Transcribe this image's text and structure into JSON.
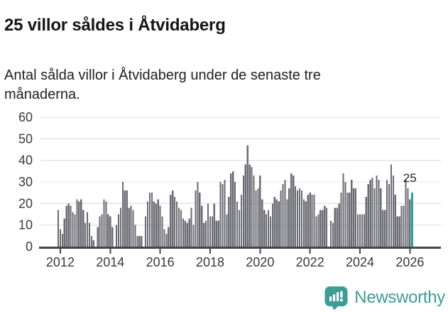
{
  "header": {
    "title": "25 villor såldes i Åtvidaberg",
    "subtitle": "Antal sålda villor i Åtvidaberg under de senaste tre månaderna."
  },
  "chart_data": {
    "type": "bar",
    "title": "25 villor såldes i Åtvidaberg",
    "subtitle": "Antal sålda villor i Åtvidaberg under de senaste tre månaderna.",
    "frequency": "monthly",
    "values": [
      17,
      8,
      6,
      13,
      19,
      20,
      19,
      16,
      15,
      22,
      21,
      22,
      17,
      11,
      16,
      11,
      5,
      3,
      0,
      9,
      14,
      15,
      22,
      21,
      15,
      14,
      9,
      0,
      10,
      15,
      18,
      30,
      26,
      26,
      18,
      19,
      17,
      10,
      5,
      5,
      5,
      0,
      14,
      21,
      25,
      25,
      21,
      20,
      22,
      19,
      14,
      8,
      6,
      9,
      24,
      26,
      23,
      21,
      18,
      17,
      13,
      12,
      11,
      13,
      18,
      10,
      26,
      30,
      25,
      19,
      11,
      12,
      20,
      14,
      14,
      20,
      12,
      12,
      30,
      29,
      31,
      15,
      23,
      34,
      35,
      30,
      21,
      17,
      24,
      33,
      38,
      47,
      38,
      37,
      33,
      26,
      27,
      33,
      22,
      17,
      15,
      17,
      14,
      20,
      23,
      22,
      21,
      26,
      29,
      31,
      22,
      27,
      34,
      33,
      28,
      26,
      27,
      26,
      22,
      21,
      24,
      25,
      24,
      24,
      14,
      15,
      17,
      17,
      19,
      18,
      0,
      12,
      11,
      18,
      18,
      20,
      25,
      34,
      30,
      25,
      25,
      31,
      27,
      27,
      15,
      15,
      15,
      15,
      23,
      29,
      31,
      32,
      27,
      33,
      31,
      27,
      17,
      17,
      31,
      29,
      38,
      33,
      24,
      14,
      14,
      19,
      19,
      31,
      27,
      22,
      25
    ],
    "highlight": {
      "index": 170,
      "value": 25,
      "label": "25",
      "color": "#2aa19b"
    },
    "bar_color": "#6a6a72",
    "ylim": [
      0,
      60
    ],
    "yticks": [
      0,
      10,
      20,
      30,
      40,
      50,
      60
    ],
    "xticks": [
      {
        "index": 1,
        "label": "2012"
      },
      {
        "index": 25,
        "label": "2014"
      },
      {
        "index": 49,
        "label": "2016"
      },
      {
        "index": 73,
        "label": "2018"
      },
      {
        "index": 97,
        "label": "2020"
      },
      {
        "index": 121,
        "label": "2022"
      },
      {
        "index": 145,
        "label": "2024"
      },
      {
        "index": 169,
        "label": "2026"
      }
    ],
    "grid": true,
    "legend": "none",
    "grid_color": "#e4e4e7",
    "axis_color": "#45454a",
    "tick_text_color": "#3a3a3a"
  },
  "branding": {
    "name": "Newsworthy",
    "color": "#3e9c96",
    "icon": "newsworthy-chart-bubble-icon"
  }
}
